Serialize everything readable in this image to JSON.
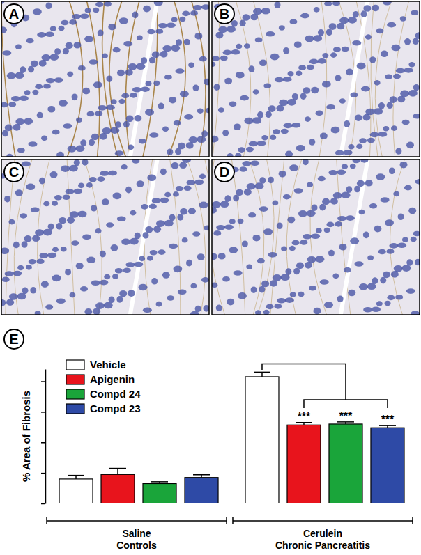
{
  "panels": [
    {
      "label": "A"
    },
    {
      "label": "B"
    },
    {
      "label": "C"
    },
    {
      "label": "D"
    }
  ],
  "chart_data": {
    "type": "bar",
    "title": "E",
    "y_label": "% Area of Fibrosis",
    "categories": [
      "Saline\nControls",
      "Cerulein\nChronic Pancreatitis"
    ],
    "series": [
      {
        "name": "Vehicle",
        "color": "#ffffff",
        "values": [
          0.8,
          4.15
        ],
        "errors": [
          0.12,
          0.15
        ]
      },
      {
        "name": "Apigenin",
        "color": "#e8141c",
        "values": [
          0.95,
          2.57
        ],
        "errors": [
          0.2,
          0.08
        ],
        "significance": [
          null,
          "***"
        ]
      },
      {
        "name": "Compd 24",
        "color": "#1aa53a",
        "values": [
          0.65,
          2.6
        ],
        "errors": [
          0.06,
          0.07
        ],
        "significance": [
          null,
          "***"
        ]
      },
      {
        "name": "Compd 23",
        "color": "#2e4aa6",
        "values": [
          0.85,
          2.48
        ],
        "errors": [
          0.09,
          0.07
        ],
        "significance": [
          null,
          "***"
        ]
      }
    ],
    "ylim": [
      0,
      4.4
    ],
    "yticks": [
      0,
      1,
      2,
      3,
      4
    ],
    "tick_labels": false,
    "legend": "upper left",
    "grid": false
  }
}
